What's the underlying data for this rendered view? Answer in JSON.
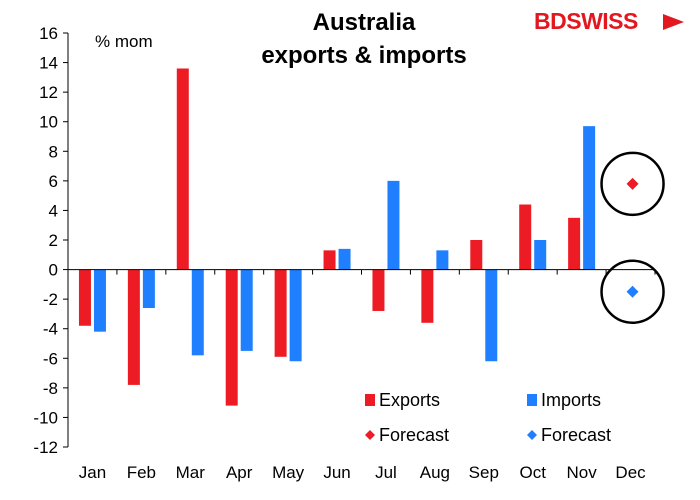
{
  "brand": {
    "logo_text_a": "BD",
    "logo_text_b": "SWISS"
  },
  "chart_data": {
    "type": "bar",
    "title_line1": "Australia",
    "title_line2": "exports & imports",
    "unit_label": "% mom",
    "categories": [
      "Jan",
      "Feb",
      "Mar",
      "Apr",
      "May",
      "Jun",
      "Jul",
      "Aug",
      "Sep",
      "Oct",
      "Nov",
      "Dec"
    ],
    "ylim": [
      -12,
      16
    ],
    "yticks": [
      16,
      14,
      12,
      10,
      8,
      6,
      4,
      2,
      0,
      -2,
      -4,
      -6,
      -8,
      -10,
      -12
    ],
    "grid": false,
    "legend_position": "bottom-right",
    "series": [
      {
        "name": "Exports",
        "color": "#ed1c24",
        "values": [
          -3.8,
          -7.8,
          13.6,
          -9.2,
          -5.9,
          1.3,
          -2.8,
          -3.6,
          2.0,
          4.4,
          3.5,
          null
        ]
      },
      {
        "name": "Imports",
        "color": "#1f7fff",
        "values": [
          -4.2,
          -2.6,
          -5.8,
          -5.5,
          -6.2,
          1.4,
          6.0,
          1.3,
          -6.2,
          2.0,
          9.7,
          null
        ]
      }
    ],
    "forecasts": [
      {
        "name": "Forecast",
        "series": "Exports",
        "category": "Dec",
        "value": 5.8,
        "color": "#ed1c24"
      },
      {
        "name": "Forecast",
        "series": "Imports",
        "category": "Dec",
        "value": -1.5,
        "color": "#1f7fff"
      }
    ]
  }
}
